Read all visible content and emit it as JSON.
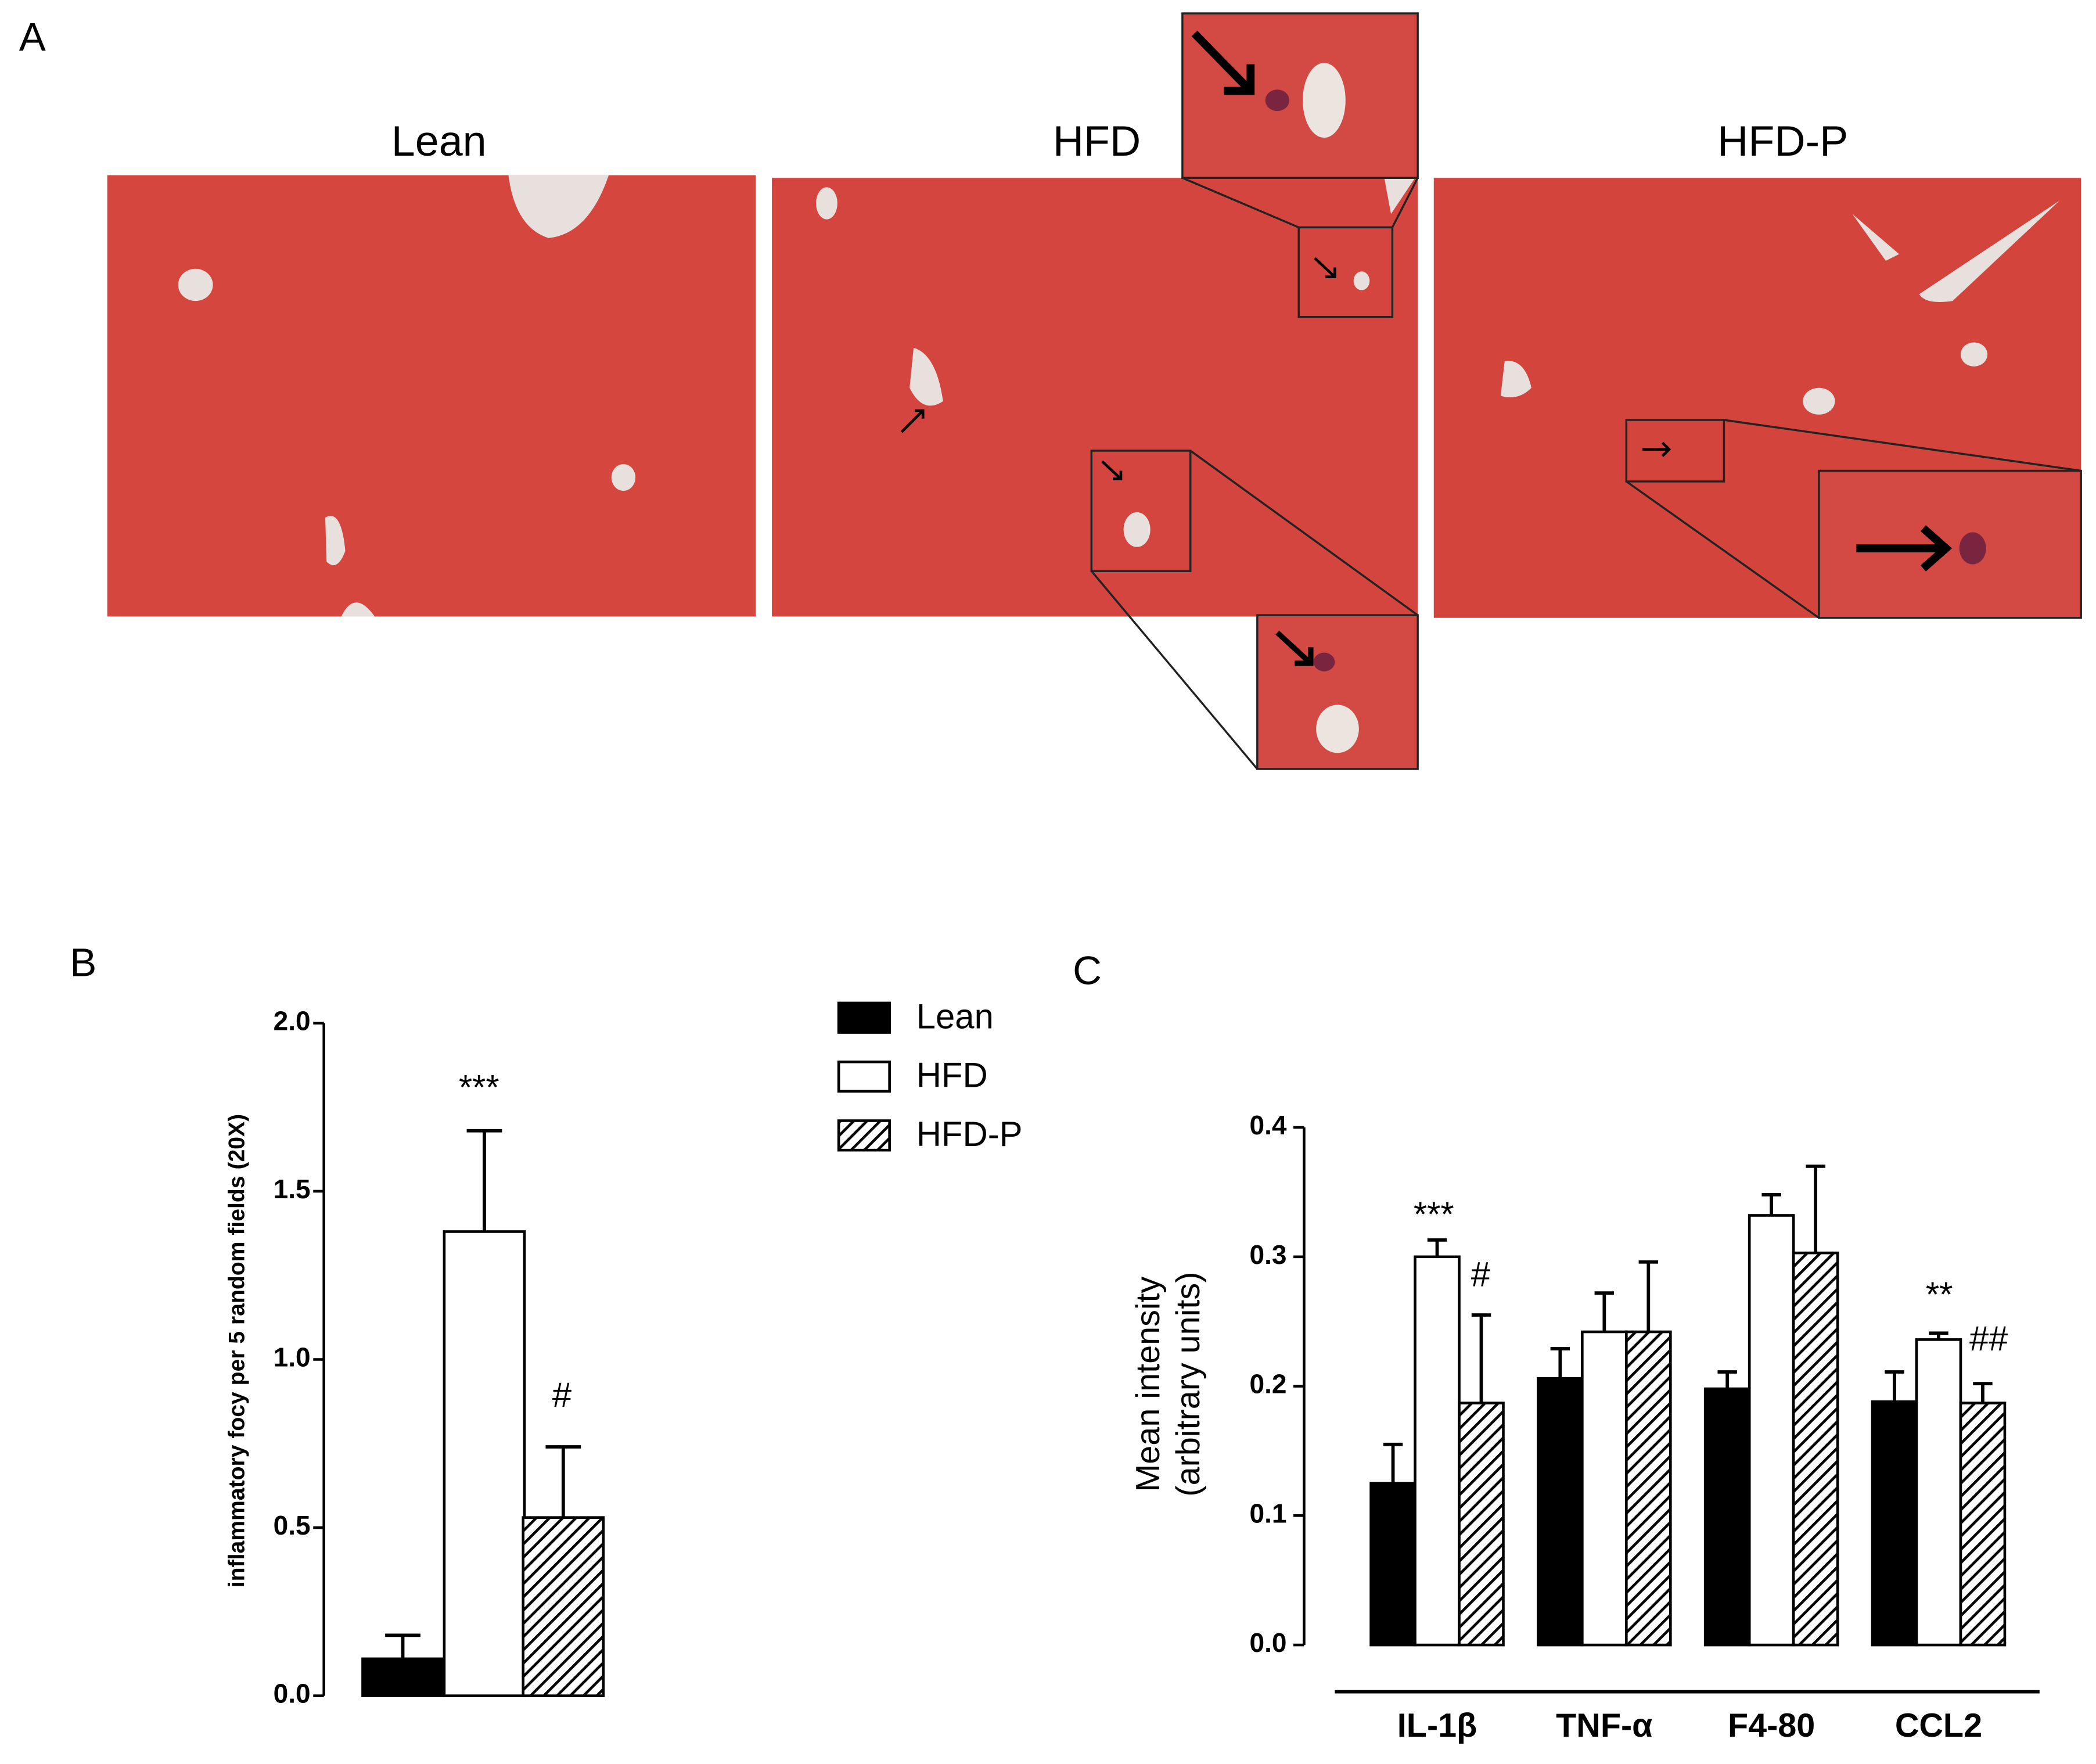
{
  "panels": {
    "a": "A",
    "b": "B",
    "c": "C"
  },
  "micrographs": {
    "titles": [
      "Lean",
      "HFD",
      "HFD-P"
    ]
  },
  "chart_data": [
    {
      "type": "bar",
      "ylabel": "inflammatory focy per 5 random fields (20X)",
      "ylim": [
        0,
        2
      ],
      "yticks": [
        {
          "value": 0,
          "label": "0.0"
        },
        0.5,
        {
          "value": 1,
          "label": "1.0"
        },
        1.5,
        {
          "value": 2,
          "label": "2.0"
        }
      ],
      "series": [
        {
          "color": "#000000",
          "values": [
            0.11
          ],
          "errors": [
            0.07
          ]
        },
        {
          "color": "#ffffff",
          "values": [
            1.38
          ],
          "errors": [
            0.3
          ]
        },
        {
          "color": "#000000",
          "hatch": true,
          "values": [
            0.53
          ],
          "errors": [
            0.21
          ]
        }
      ],
      "annotations": [
        "***",
        "#"
      ]
    },
    {
      "type": "bar",
      "ylabel": [
        "Mean intensity",
        "(arbitrary units)"
      ],
      "categories": [
        "IL-1β",
        "TNF-α",
        "F4-80",
        "CCL2"
      ],
      "ylim": [
        0,
        0.4
      ],
      "yticks": [
        {
          "value": 0,
          "label": "0.0"
        },
        0.1,
        0.2,
        0.3,
        0.4
      ],
      "series": [
        {
          "name": "Lean",
          "color": "#000000",
          "values": [
            0.125,
            0.206,
            0.198,
            0.188
          ],
          "errors": [
            0.03,
            0.023,
            0.013,
            0.023
          ]
        },
        {
          "name": "HFD",
          "color": "#ffffff",
          "values": [
            0.3,
            0.242,
            0.332,
            0.236
          ],
          "errors": [
            0.013,
            0.03,
            0.016,
            0.005
          ]
        },
        {
          "name": "HFD-P",
          "color": "#000000",
          "hatch": true,
          "values": [
            0.187,
            0.242,
            0.303,
            0.187
          ],
          "errors": [
            0.068,
            0.054,
            0.067,
            0.015
          ]
        }
      ],
      "annotations": [
        "***",
        "#",
        "**",
        "##"
      ]
    }
  ]
}
